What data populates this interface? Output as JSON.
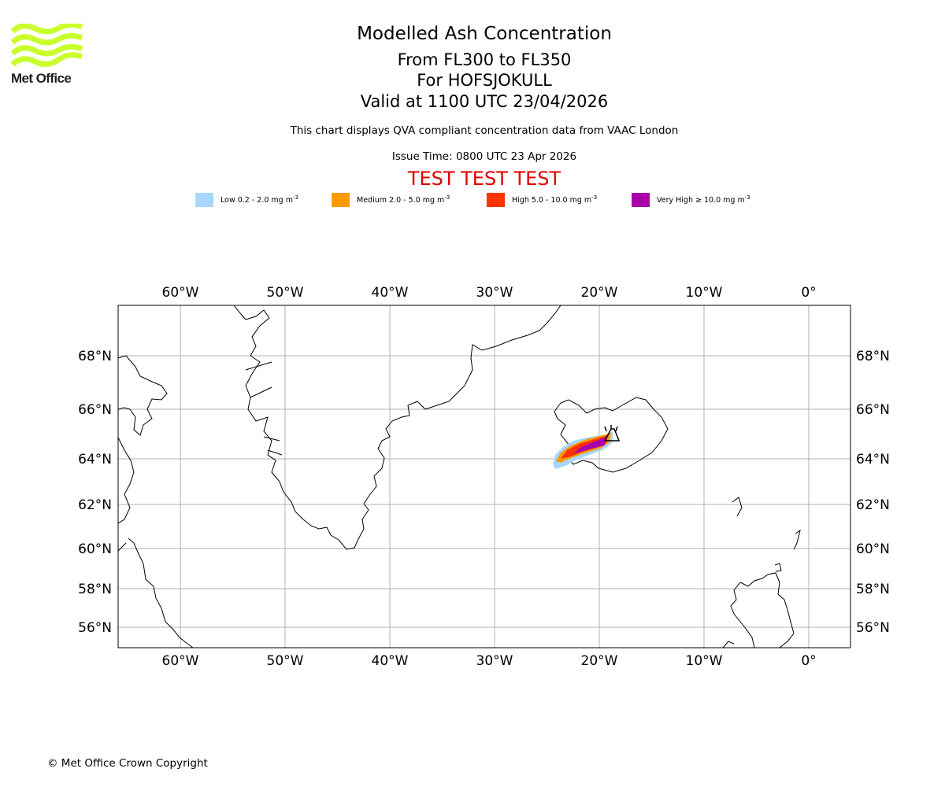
{
  "logo": {
    "text": "Met Office",
    "color": "#c8ff2c"
  },
  "titles": {
    "main": "Modelled Ash Concentration",
    "levels": "From FL300 to FL350",
    "volcano": "For HOFSJOKULL",
    "valid": "Valid at 1100 UTC 23/04/2026"
  },
  "subtitle": "This chart displays QVA compliant concentration data from VAAC London",
  "issue_time": "Issue Time: 0800 UTC 23 Apr 2026",
  "test_banner": "TEST TEST TEST",
  "legend": [
    {
      "label": "Low 0.2 - 2.0 mg m",
      "color": "#a6d7ff",
      "unit_sup": "-3"
    },
    {
      "label": "Medium 2.0 - 5.0 mg m",
      "color": "#ff9900",
      "unit_sup": "-3"
    },
    {
      "label": "High 5.0 - 10.0 mg m",
      "color": "#ff3300",
      "unit_sup": "-3"
    },
    {
      "label": "Very High  ≥  10.0 mg m",
      "color": "#aa00aa",
      "unit_sup": "-3"
    }
  ],
  "map": {
    "lon_range": [
      -66,
      4
    ],
    "lat_range": [
      55,
      70
    ],
    "lon_ticks": [
      -60,
      -50,
      -40,
      -30,
      -20,
      -10,
      0
    ],
    "lon_tick_labels": [
      "60°W",
      "50°W",
      "40°W",
      "30°W",
      "20°W",
      "10°W",
      "0°"
    ],
    "lat_ticks": [
      68,
      66,
      64,
      62,
      60,
      58,
      56
    ],
    "lat_tick_labels": [
      "68°N",
      "66°N",
      "64°N",
      "62°N",
      "60°N",
      "58°N",
      "56°N"
    ],
    "gridlines": true,
    "volcano": {
      "name": "HOFSJOKULL",
      "lon": -18.9,
      "lat": 64.8
    },
    "ash_levels": [
      "low",
      "medium",
      "high",
      "very-high"
    ]
  },
  "copyright": "© Met Office Crown Copyright"
}
